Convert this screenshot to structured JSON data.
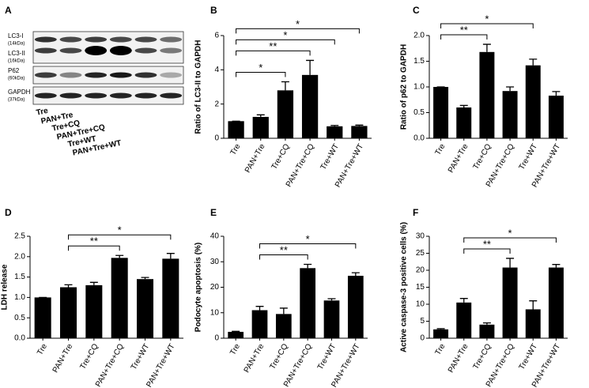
{
  "blot": {
    "label": "A",
    "bands": [
      {
        "name": "LC3-I",
        "size": "(14kDa)"
      },
      {
        "name": "LC3-II",
        "size": "(16kDa)"
      },
      {
        "name": "P62",
        "size": "(60kDa)"
      },
      {
        "name": "GAPDH",
        "size": "(37kDa)"
      }
    ],
    "lanes": [
      "Tre",
      "PAN+Tre",
      "Tre+CQ",
      "PAN+Tre+CQ",
      "Tre+WT",
      "PAN+Tre+WT"
    ]
  },
  "chart_data": [
    {
      "type": "bar",
      "label": "B",
      "y_label": "Ratio of LC3-II to GAPDH",
      "color": "#000000",
      "categories": [
        "Tre",
        "PAN+Tre",
        "Tre+CQ",
        "PAN+Tre+CQ",
        "Tre+WT",
        "PAN+Tre+WT"
      ],
      "values": [
        1.0,
        1.25,
        2.8,
        3.7,
        0.7,
        0.72
      ],
      "errors": [
        0,
        0.12,
        0.5,
        0.85,
        0.05,
        0.05
      ],
      "ylim": [
        0,
        6
      ],
      "yticks": [
        0,
        2,
        4,
        6
      ],
      "brackets": [
        {
          "from": "Tre",
          "to": "Tre+CQ",
          "label": "*"
        },
        {
          "from": "Tre",
          "to": "PAN+Tre+CQ",
          "label": "**"
        },
        {
          "from": "Tre",
          "to": "Tre+WT",
          "label": "*"
        },
        {
          "from": "Tre",
          "to": "PAN+Tre+WT",
          "label": "*"
        }
      ]
    },
    {
      "type": "bar",
      "label": "C",
      "y_label": "Ratio of p62 to GAPDH",
      "color": "#000000",
      "categories": [
        "Tre",
        "PAN+Tre",
        "Tre+CQ",
        "PAN+Tre+CQ",
        "Tre+WT",
        "PAN+Tre+WT"
      ],
      "values": [
        1.0,
        0.6,
        1.68,
        0.92,
        1.42,
        0.83
      ],
      "errors": [
        0,
        0.04,
        0.15,
        0.08,
        0.12,
        0.08
      ],
      "ylim": [
        0,
        2.0
      ],
      "yticks": [
        {
          "value": 0,
          "label": "0.0"
        },
        0.5,
        {
          "value": 1,
          "label": "1.0"
        },
        1.5,
        {
          "value": 2,
          "label": "2.0"
        }
      ],
      "brackets": [
        {
          "from": "Tre",
          "to": "Tre+CQ",
          "label": "**"
        },
        {
          "from": "Tre",
          "to": "Tre+WT",
          "label": "*"
        }
      ]
    },
    {
      "type": "bar",
      "label": "D",
      "y_label": "LDH release",
      "color": "#000000",
      "categories": [
        "Tre",
        "PAN+Tre",
        "Tre+CQ",
        "PAN+Tre+CQ",
        "Tre+WT",
        "PAN+Tre+WT"
      ],
      "values": [
        1.0,
        1.25,
        1.3,
        1.97,
        1.45,
        1.95
      ],
      "errors": [
        0,
        0.06,
        0.07,
        0.06,
        0.04,
        0.13
      ],
      "ylim": [
        0,
        2.5
      ],
      "yticks": [
        {
          "value": 0,
          "label": "0.0"
        },
        0.5,
        {
          "value": 1,
          "label": "1.0"
        },
        1.5,
        {
          "value": 2,
          "label": "2.0"
        },
        2.5
      ],
      "brackets": [
        {
          "from": "PAN+Tre",
          "to": "PAN+Tre+CQ",
          "label": "**"
        },
        {
          "from": "PAN+Tre",
          "to": "PAN+Tre+WT",
          "label": "*"
        }
      ]
    },
    {
      "type": "bar",
      "label": "E",
      "y_label": "Podocyte apoptosis (%)",
      "color": "#000000",
      "categories": [
        "Tre",
        "PAN+Tre",
        "Tre+CQ",
        "PAN+Tre+CQ",
        "Tre+WT",
        "PAN+Tre+WT"
      ],
      "values": [
        2.5,
        11,
        9.5,
        27.5,
        14.8,
        24.5
      ],
      "errors": [
        0.2,
        1.5,
        2.3,
        1.5,
        0.7,
        1.2
      ],
      "ylim": [
        0,
        40
      ],
      "yticks": [
        0,
        10,
        20,
        30,
        40
      ],
      "brackets": [
        {
          "from": "PAN+Tre",
          "to": "PAN+Tre+CQ",
          "label": "**"
        },
        {
          "from": "PAN+Tre",
          "to": "PAN+Tre+WT",
          "label": "*"
        }
      ]
    },
    {
      "type": "bar",
      "label": "F",
      "y_label": "Active caspase-3 positive cells (%)",
      "color": "#000000",
      "categories": [
        "Tre",
        "PAN+Tre",
        "Tre+CQ",
        "PAN+Tre+CQ",
        "Tre+WT",
        "PAN+Tre+WT"
      ],
      "values": [
        2.6,
        10.5,
        4,
        20.8,
        8.5,
        20.8
      ],
      "errors": [
        0.2,
        1.2,
        0.5,
        2.7,
        2.5,
        0.9
      ],
      "ylim": [
        0,
        30
      ],
      "yticks": [
        0,
        5,
        10,
        15,
        20,
        25,
        30
      ],
      "brackets": [
        {
          "from": "PAN+Tre",
          "to": "PAN+Tre+CQ",
          "label": "**"
        },
        {
          "from": "PAN+Tre",
          "to": "PAN+Tre+WT",
          "label": "*"
        }
      ]
    }
  ]
}
